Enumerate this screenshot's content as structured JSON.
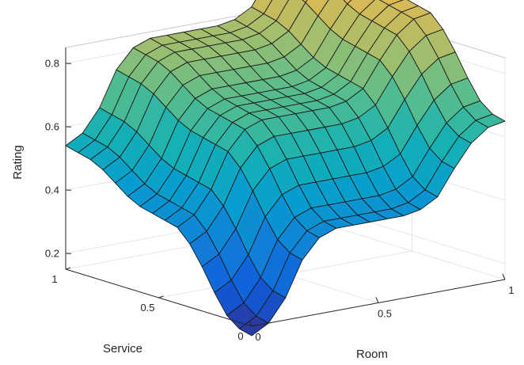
{
  "chart_data": {
    "type": "surface",
    "title": "",
    "xlabel": "Room",
    "ylabel": "Service",
    "zlabel": "Rating",
    "xlim": [
      0,
      1
    ],
    "ylim": [
      0,
      1
    ],
    "zlim": [
      0.15,
      0.85
    ],
    "x_ticks": [
      {
        "value": 0,
        "label": "0"
      },
      {
        "value": 0.5,
        "label": "0.5"
      },
      {
        "value": 1,
        "label": "1"
      }
    ],
    "y_ticks": [
      {
        "value": 0,
        "label": "0"
      },
      {
        "value": 0.5,
        "label": "0.5"
      },
      {
        "value": 1,
        "label": "1"
      }
    ],
    "z_ticks": [
      {
        "value": 0.2,
        "label": "0.2"
      },
      {
        "value": 0.4,
        "label": "0.4"
      },
      {
        "value": 0.6,
        "label": "0.6"
      },
      {
        "value": 0.8,
        "label": "0.8"
      }
    ],
    "colormap": "parula",
    "grid": true,
    "x_grid": [
      0,
      0.0667,
      0.1333,
      0.2,
      0.2667,
      0.3333,
      0.4,
      0.4667,
      0.5333,
      0.6,
      0.6667,
      0.7333,
      0.8,
      0.8667,
      0.9333,
      1
    ],
    "y_grid": [
      0,
      0.0667,
      0.1333,
      0.2,
      0.2667,
      0.3333,
      0.4,
      0.4667,
      0.5333,
      0.6,
      0.6667,
      0.7333,
      0.8,
      0.8667,
      0.9333,
      1
    ],
    "z": [
      [
        0.12,
        0.15,
        0.22,
        0.33,
        0.39,
        0.41,
        0.41,
        0.41,
        0.41,
        0.41,
        0.42,
        0.45,
        0.53,
        0.6,
        0.64,
        0.65
      ],
      [
        0.13,
        0.16,
        0.23,
        0.34,
        0.4,
        0.42,
        0.42,
        0.42,
        0.42,
        0.42,
        0.43,
        0.46,
        0.54,
        0.61,
        0.65,
        0.66
      ],
      [
        0.16,
        0.19,
        0.26,
        0.37,
        0.43,
        0.45,
        0.45,
        0.45,
        0.45,
        0.45,
        0.46,
        0.49,
        0.57,
        0.64,
        0.68,
        0.69
      ],
      [
        0.22,
        0.25,
        0.32,
        0.43,
        0.49,
        0.51,
        0.51,
        0.51,
        0.51,
        0.51,
        0.52,
        0.55,
        0.63,
        0.7,
        0.74,
        0.75
      ],
      [
        0.29,
        0.32,
        0.39,
        0.5,
        0.56,
        0.58,
        0.58,
        0.58,
        0.58,
        0.58,
        0.59,
        0.62,
        0.7,
        0.77,
        0.81,
        0.82
      ],
      [
        0.35,
        0.38,
        0.45,
        0.56,
        0.62,
        0.64,
        0.64,
        0.64,
        0.64,
        0.64,
        0.65,
        0.68,
        0.76,
        0.83,
        0.87,
        0.88
      ],
      [
        0.39,
        0.42,
        0.49,
        0.6,
        0.66,
        0.68,
        0.68,
        0.68,
        0.68,
        0.68,
        0.69,
        0.72,
        0.8,
        0.87,
        0.91,
        0.92
      ],
      [
        0.4,
        0.43,
        0.5,
        0.61,
        0.67,
        0.69,
        0.69,
        0.69,
        0.69,
        0.69,
        0.7,
        0.73,
        0.81,
        0.88,
        0.92,
        0.93
      ],
      [
        0.41,
        0.44,
        0.51,
        0.62,
        0.68,
        0.7,
        0.7,
        0.7,
        0.7,
        0.7,
        0.71,
        0.74,
        0.82,
        0.89,
        0.93,
        0.94
      ],
      [
        0.42,
        0.45,
        0.52,
        0.63,
        0.69,
        0.71,
        0.71,
        0.71,
        0.71,
        0.71,
        0.72,
        0.75,
        0.83,
        0.9,
        0.94,
        0.95
      ],
      [
        0.44,
        0.47,
        0.54,
        0.65,
        0.71,
        0.73,
        0.73,
        0.73,
        0.73,
        0.73,
        0.74,
        0.77,
        0.85,
        0.92,
        0.96,
        0.97
      ],
      [
        0.47,
        0.5,
        0.57,
        0.68,
        0.74,
        0.76,
        0.76,
        0.76,
        0.76,
        0.76,
        0.77,
        0.8,
        0.88,
        0.95,
        0.99,
        1.0
      ],
      [
        0.5,
        0.53,
        0.6,
        0.71,
        0.77,
        0.79,
        0.79,
        0.79,
        0.79,
        0.79,
        0.8,
        0.83,
        0.91,
        0.98,
        1.02,
        1.03
      ],
      [
        0.52,
        0.55,
        0.62,
        0.73,
        0.79,
        0.81,
        0.81,
        0.81,
        0.81,
        0.81,
        0.82,
        0.85,
        0.93,
        1.0,
        1.04,
        1.05
      ],
      [
        0.53,
        0.56,
        0.63,
        0.74,
        0.8,
        0.82,
        0.82,
        0.82,
        0.82,
        0.82,
        0.83,
        0.86,
        0.94,
        1.01,
        1.05,
        1.06
      ],
      [
        0.54,
        0.57,
        0.64,
        0.75,
        0.81,
        0.83,
        0.83,
        0.83,
        0.83,
        0.83,
        0.84,
        0.87,
        0.95,
        1.02,
        1.06,
        1.07
      ]
    ]
  }
}
